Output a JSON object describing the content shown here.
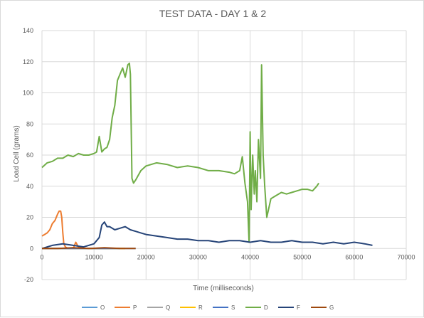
{
  "chart_data": {
    "type": "line",
    "title": "TEST DATA - DAY 1 & 2",
    "xlabel": "Time (milliseconds)",
    "ylabel": "Load Cell (grams)",
    "xlim": [
      0,
      70000
    ],
    "ylim": [
      -20,
      140
    ],
    "xticks": [
      "0",
      "10000",
      "20000",
      "30000",
      "40000",
      "50000",
      "60000",
      "70000"
    ],
    "yticks": [
      "-20",
      "0",
      "20",
      "40",
      "60",
      "80",
      "100",
      "120",
      "140"
    ],
    "grid": true,
    "legend_position": "bottom",
    "series": [
      {
        "name": "O",
        "color": "#5b9bd5",
        "x": [
          0,
          3000,
          6000,
          9000,
          12000,
          15000,
          18000
        ],
        "y": [
          0,
          0,
          0,
          0,
          0,
          0,
          0
        ]
      },
      {
        "name": "P",
        "color": "#ed7d31",
        "x": [
          0,
          500,
          1000,
          1500,
          2000,
          2500,
          3000,
          3300,
          3600,
          3800,
          4000,
          4200,
          4500,
          5000,
          6000,
          6500,
          7000,
          8000
        ],
        "y": [
          8,
          9,
          10,
          12,
          16,
          18,
          22,
          24,
          24,
          20,
          10,
          3,
          1,
          0,
          0,
          4,
          1,
          0
        ]
      },
      {
        "name": "Q",
        "color": "#a5a5a5",
        "x": [
          0,
          4000,
          8000,
          12000,
          16000
        ],
        "y": [
          0,
          0,
          0,
          0,
          0
        ]
      },
      {
        "name": "R",
        "color": "#ffc000",
        "x": [
          0,
          4000,
          8000,
          12000,
          16000
        ],
        "y": [
          0,
          0,
          0,
          0,
          0
        ]
      },
      {
        "name": "S",
        "color": "#4472c4",
        "x": [
          0,
          5000,
          10000,
          15000
        ],
        "y": [
          0,
          0,
          0,
          0
        ]
      },
      {
        "name": "D",
        "color": "#70ad47",
        "x": [
          0,
          1000,
          2000,
          3000,
          4000,
          5000,
          6000,
          7000,
          8000,
          9000,
          10000,
          10500,
          11000,
          11500,
          12000,
          12500,
          13000,
          13500,
          14000,
          14500,
          15000,
          15500,
          16000,
          16500,
          16800,
          17000,
          17300,
          17600,
          18000,
          19000,
          20000,
          22000,
          24000,
          26000,
          28000,
          30000,
          32000,
          34000,
          36000,
          37000,
          38000,
          38500,
          39000,
          39500,
          39800,
          40000,
          40200,
          40500,
          40800,
          41000,
          41300,
          41600,
          42000,
          42200,
          42500,
          42800,
          43200,
          44000,
          45000,
          46000,
          47000,
          48000,
          49000,
          50000,
          51000,
          52000,
          52800,
          53200
        ],
        "y": [
          52,
          55,
          56,
          58,
          58,
          60,
          59,
          61,
          60,
          60,
          61,
          62,
          72,
          62,
          64,
          65,
          70,
          84,
          92,
          108,
          112,
          116,
          110,
          118,
          119,
          112,
          45,
          42,
          44,
          50,
          53,
          55,
          54,
          52,
          53,
          52,
          50,
          50,
          49,
          48,
          50,
          59,
          42,
          30,
          4,
          75,
          25,
          60,
          35,
          50,
          30,
          70,
          45,
          118,
          60,
          40,
          20,
          32,
          34,
          36,
          35,
          36,
          37,
          38,
          38,
          37,
          40,
          42
        ]
      },
      {
        "name": "F",
        "color": "#264478",
        "x": [
          0,
          2000,
          4000,
          6000,
          8000,
          10000,
          11000,
          11500,
          12000,
          12500,
          13000,
          14000,
          15000,
          16000,
          17000,
          18000,
          19000,
          20000,
          22000,
          24000,
          26000,
          28000,
          30000,
          32000,
          34000,
          36000,
          38000,
          40000,
          42000,
          44000,
          46000,
          48000,
          50000,
          52000,
          54000,
          56000,
          58000,
          60000,
          62000,
          63500
        ],
        "y": [
          0,
          2,
          3,
          2,
          1,
          3,
          7,
          15,
          17,
          14,
          14,
          12,
          13,
          14,
          12,
          11,
          10,
          9,
          8,
          7,
          6,
          6,
          5,
          5,
          4,
          5,
          5,
          4,
          5,
          4,
          4,
          5,
          4,
          4,
          3,
          4,
          3,
          4,
          3,
          2
        ]
      },
      {
        "name": "G",
        "color": "#9e480e",
        "x": [
          0,
          3000,
          6000,
          9000,
          12000,
          15000,
          18000
        ],
        "y": [
          0,
          0,
          0.5,
          0,
          0.5,
          0,
          0
        ]
      }
    ]
  }
}
